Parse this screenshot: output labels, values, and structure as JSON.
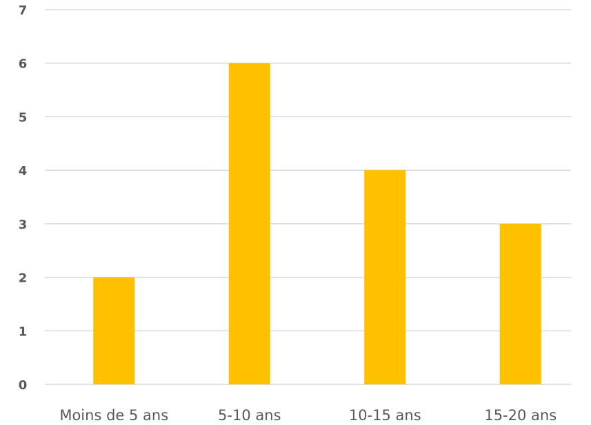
{
  "chart_data": {
    "type": "bar",
    "categories": [
      "Moins de 5 ans",
      "5-10 ans",
      "10-15 ans",
      "15-20 ans"
    ],
    "values": [
      2,
      6,
      4,
      3
    ],
    "color": "#ffc000",
    "ylim": [
      0,
      7
    ],
    "yticks": [
      0,
      1,
      2,
      3,
      4,
      5,
      6,
      7
    ],
    "grid": true
  }
}
